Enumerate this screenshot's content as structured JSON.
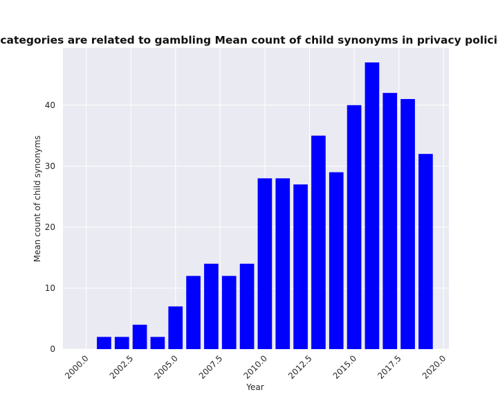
{
  "chart_data": {
    "type": "bar",
    "title": "when categories are related to gambling Mean count of child synonyms in privacy policies by Y",
    "xlabel": "Year",
    "ylabel": "Mean count of child synonyms",
    "x": [
      2000,
      2001,
      2002,
      2003,
      2004,
      2005,
      2006,
      2007,
      2008,
      2009,
      2010,
      2011,
      2012,
      2013,
      2014,
      2015,
      2016,
      2017,
      2018,
      2019
    ],
    "values": [
      0,
      2,
      2,
      4,
      2,
      7,
      12,
      14,
      12,
      14,
      28,
      28,
      27,
      35,
      29,
      40,
      47,
      42,
      41,
      32
    ],
    "xlim": [
      1998.7,
      2020.3
    ],
    "ylim": [
      0,
      49.4
    ],
    "xticks": [
      "2000.0",
      "2002.5",
      "2005.0",
      "2007.5",
      "2010.0",
      "2012.5",
      "2015.0",
      "2017.5",
      "2020.0"
    ],
    "yticks": [
      "0",
      "10",
      "20",
      "30",
      "40"
    ],
    "bar_color": "#0000ff",
    "plot_background": "#eaeaf2",
    "grid_color": "#ffffff",
    "grid": true,
    "legend": false
  }
}
